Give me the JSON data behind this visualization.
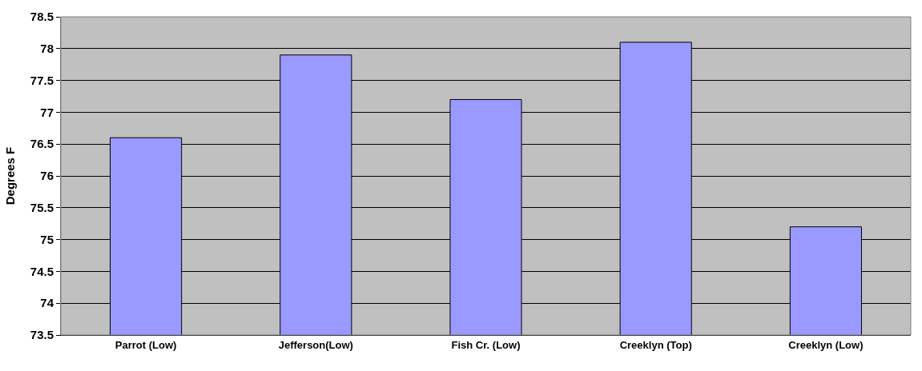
{
  "chart_data": {
    "type": "bar",
    "ylabel": "Degrees F",
    "categories": [
      "Parrot (Low)",
      "Jefferson(Low)",
      "Fish Cr. (Low)",
      "Creeklyn (Top)",
      "Creeklyn (Low)"
    ],
    "values": [
      76.6,
      77.9,
      77.2,
      78.1,
      75.2
    ],
    "color": "#9999ff",
    "ylim": [
      73.5,
      78.5
    ],
    "yticks": [
      73.5,
      74,
      74.5,
      75,
      75.5,
      76,
      76.5,
      77,
      77.5,
      78,
      78.5
    ],
    "grid": "y",
    "legend": false
  }
}
